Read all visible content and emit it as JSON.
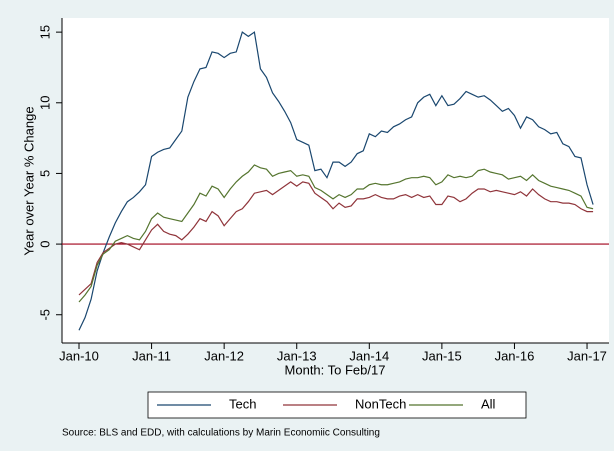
{
  "chart_data": {
    "type": "line",
    "y_label": "Year over Year % Change",
    "x_label": "Month: To Feb/17",
    "source": "Source: BLS and EDD, with calculations by Marin Economiic Consulting",
    "categories": [
      "Jan-10",
      null,
      null,
      null,
      null,
      null,
      null,
      null,
      null,
      null,
      null,
      null,
      "Jan-11",
      null,
      null,
      null,
      null,
      null,
      null,
      null,
      null,
      null,
      null,
      null,
      "Jan-12",
      null,
      null,
      null,
      null,
      null,
      null,
      null,
      null,
      null,
      null,
      null,
      "Jan-13",
      null,
      null,
      null,
      null,
      null,
      null,
      null,
      null,
      null,
      null,
      null,
      "Jan-14",
      null,
      null,
      null,
      null,
      null,
      null,
      null,
      null,
      null,
      null,
      null,
      "Jan-15",
      null,
      null,
      null,
      null,
      null,
      null,
      null,
      null,
      null,
      null,
      null,
      "Jan-16",
      null,
      null,
      null,
      null,
      null,
      null,
      null,
      null,
      null,
      null,
      null,
      "Jan-17",
      null
    ],
    "series": [
      {
        "name": "Tech",
        "color": "#1a476f",
        "values": [
          -6.1,
          -5.2,
          -3.9,
          -1.9,
          -0.6,
          0.5,
          1.5,
          2.3,
          3.0,
          3.3,
          3.7,
          4.2,
          6.2,
          6.5,
          6.7,
          6.8,
          7.4,
          8.0,
          10.4,
          11.5,
          12.4,
          12.5,
          13.6,
          13.5,
          13.2,
          13.5,
          13.6,
          15.0,
          14.7,
          15.0,
          12.4,
          11.8,
          10.7,
          10.1,
          9.4,
          8.6,
          7.4,
          7.2,
          7.0,
          5.2,
          5.3,
          4.7,
          5.8,
          5.8,
          5.5,
          5.8,
          6.4,
          6.6,
          7.8,
          7.6,
          8.0,
          7.9,
          8.3,
          8.5,
          8.8,
          9.0,
          10.0,
          10.4,
          10.6,
          9.8,
          10.5,
          9.8,
          9.9,
          10.3,
          10.8,
          10.6,
          10.4,
          10.5,
          10.2,
          9.8,
          9.4,
          9.6,
          9.1,
          8.2,
          9.0,
          8.8,
          8.3,
          8.1,
          7.8,
          7.9,
          7.1,
          6.9,
          6.2,
          6.1,
          4.2,
          2.8
        ]
      },
      {
        "name": "NonTech",
        "color": "#90353b",
        "values": [
          -3.6,
          -3.2,
          -2.8,
          -1.3,
          -0.6,
          -0.3,
          0.0,
          0.1,
          0.0,
          -0.2,
          -0.4,
          0.3,
          1.0,
          1.4,
          0.9,
          0.7,
          0.6,
          0.3,
          0.7,
          1.2,
          1.8,
          1.6,
          2.3,
          2.0,
          1.3,
          1.8,
          2.3,
          2.5,
          3.0,
          3.6,
          3.7,
          3.8,
          3.5,
          3.8,
          4.1,
          4.4,
          4.1,
          4.4,
          4.3,
          3.6,
          3.3,
          3.0,
          2.5,
          2.9,
          2.6,
          2.7,
          3.2,
          3.2,
          3.3,
          3.5,
          3.3,
          3.2,
          3.2,
          3.4,
          3.5,
          3.3,
          3.5,
          3.3,
          3.4,
          2.8,
          2.8,
          3.4,
          3.3,
          3.0,
          3.2,
          3.6,
          3.9,
          3.9,
          3.7,
          3.8,
          3.7,
          3.6,
          3.5,
          3.7,
          3.4,
          3.9,
          3.5,
          3.2,
          3.0,
          3.0,
          2.9,
          2.9,
          2.8,
          2.5,
          2.3,
          2.3
        ]
      },
      {
        "name": "All",
        "color": "#55752f",
        "values": [
          -4.1,
          -3.6,
          -3.0,
          -1.5,
          -0.7,
          -0.4,
          0.2,
          0.4,
          0.6,
          0.4,
          0.3,
          0.9,
          1.8,
          2.2,
          1.9,
          1.8,
          1.7,
          1.6,
          2.2,
          2.8,
          3.6,
          3.4,
          4.1,
          3.9,
          3.3,
          3.9,
          4.4,
          4.8,
          5.1,
          5.6,
          5.4,
          5.3,
          4.8,
          5.0,
          5.1,
          5.2,
          4.8,
          4.9,
          4.8,
          4.0,
          3.8,
          3.5,
          3.2,
          3.5,
          3.3,
          3.5,
          3.9,
          3.9,
          4.2,
          4.3,
          4.2,
          4.2,
          4.3,
          4.4,
          4.6,
          4.7,
          4.7,
          4.8,
          4.7,
          4.2,
          4.4,
          4.9,
          4.7,
          4.8,
          4.7,
          4.8,
          5.2,
          5.3,
          5.1,
          5.0,
          4.9,
          4.6,
          4.7,
          4.8,
          4.5,
          4.9,
          4.5,
          4.3,
          4.1,
          4.0,
          3.9,
          3.8,
          3.6,
          3.4,
          2.6,
          2.5
        ]
      }
    ],
    "ylim": [
      -7,
      16
    ],
    "yticks": [
      -5,
      0,
      5,
      10,
      15
    ],
    "reference_line": {
      "value": 0,
      "color": "#a0001a"
    },
    "grid": false,
    "legend": "bottom"
  }
}
